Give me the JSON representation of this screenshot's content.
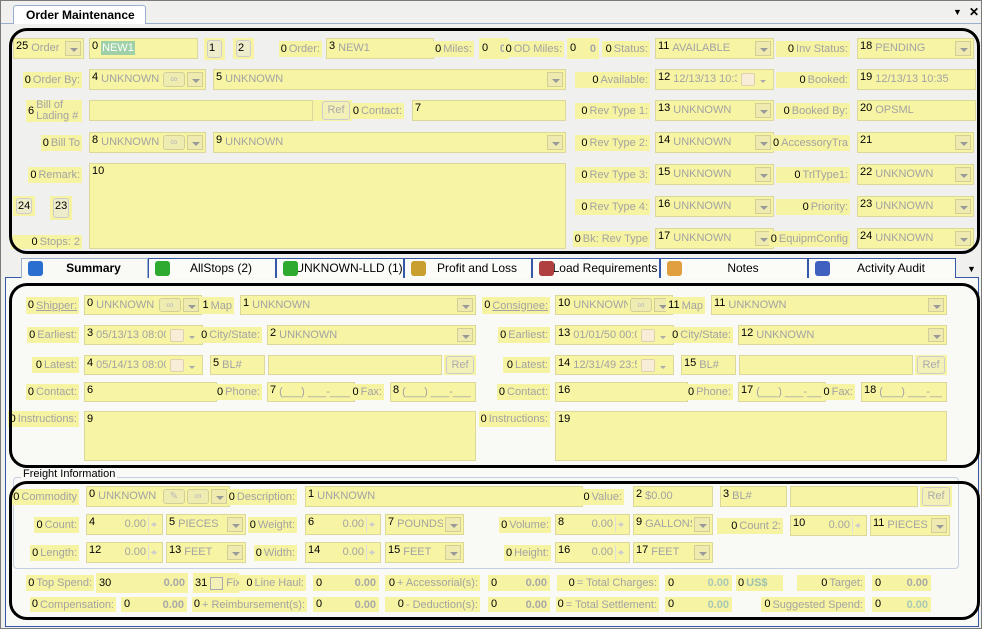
{
  "window": {
    "title": "Order Maintenance",
    "menu_icon": "dropdown-arrow",
    "close_icon": "x"
  },
  "order": {
    "type": {
      "value": "Order",
      "tag": "25"
    },
    "number": {
      "value": "NEW1",
      "tag": "0"
    },
    "copy_button": {
      "tag": "1",
      "icon": "copy-icon"
    },
    "edit_button": {
      "tag": "2",
      "icon": "edit-icon"
    },
    "order_label": {
      "label": "Order:",
      "tag": "0"
    },
    "order_value": {
      "value": "NEW1",
      "tag": "3"
    },
    "miles_label": {
      "label": "Miles:",
      "tag": "0"
    },
    "miles": {
      "value": "0",
      "tag": "0"
    },
    "od_miles_label": {
      "label": "OD Miles:",
      "tag": "0"
    },
    "od_miles": {
      "value": "0",
      "tag": "0"
    },
    "status_label": {
      "label": "Status:",
      "tag": "0"
    },
    "status": {
      "value": "AVAILABLE",
      "tag": "11"
    },
    "inv_status_label": {
      "label": "Inv Status:",
      "tag": "0"
    },
    "inv_status": {
      "value": "PENDING",
      "tag": "18"
    },
    "order_by_label": {
      "label": "Order By:",
      "tag": "0"
    },
    "order_by_code": {
      "value": "UNKNOWN",
      "tag": "4"
    },
    "order_by_name": {
      "value": "UNKNOWN",
      "tag": "5"
    },
    "available_label": {
      "label": "Available:",
      "tag": "0"
    },
    "available": {
      "value": "12/13/13 10:35",
      "tag": "12"
    },
    "booked_label": {
      "label": "Booked:",
      "tag": "0"
    },
    "booked": {
      "value": "12/13/13 10:35",
      "tag": "19"
    },
    "bol_label": {
      "label": "Bill of Lading #",
      "tag": "6"
    },
    "bol": {
      "value": "",
      "tag": ""
    },
    "bol_ref": {
      "label": "Ref"
    },
    "contact_label": {
      "label": "Contact:",
      "tag": "0"
    },
    "contact": {
      "value": "",
      "tag": "7"
    },
    "rev1_label": {
      "label": "Rev Type 1:",
      "tag": "0"
    },
    "rev1": {
      "value": "UNKNOWN",
      "tag": "13"
    },
    "booked_by_label": {
      "label": "Booked By:",
      "tag": "0"
    },
    "booked_by": {
      "value": "OPSML",
      "tag": "20"
    },
    "bill_to_label": {
      "label": "Bill To",
      "tag": "0"
    },
    "bill_to_code": {
      "value": "UNKNOWN",
      "tag": "8"
    },
    "bill_to_name": {
      "value": "UNKNOWN",
      "tag": "9"
    },
    "rev2_label": {
      "label": "Rev Type 2:",
      "tag": "0"
    },
    "rev2": {
      "value": "UNKNOWN",
      "tag": "14"
    },
    "accessory_label": {
      "label": "AccessoryTra",
      "tag": "0"
    },
    "accessory": {
      "value": "",
      "tag": "21"
    },
    "remark_label": {
      "label": "Remark:",
      "tag": "0"
    },
    "remark": {
      "value": "",
      "tag": "10"
    },
    "rev3_label": {
      "label": "Rev Type 3:",
      "tag": "0"
    },
    "rev3": {
      "value": "UNKNOWN",
      "tag": "15"
    },
    "trltype_label": {
      "label": "TrlType1:",
      "tag": "0"
    },
    "trltype": {
      "value": "UNKNOWN",
      "tag": "22"
    },
    "shield_button": {
      "tag": "24",
      "icon": "shield-icon"
    },
    "note_button": {
      "tag": "23",
      "icon": "note-icon"
    },
    "rev4_label": {
      "label": "Rev Type 4:",
      "tag": "0"
    },
    "rev4": {
      "value": "UNKNOWN",
      "tag": "16"
    },
    "priority_label": {
      "label": "Priority:",
      "tag": "0"
    },
    "priority": {
      "value": "UNKNOWN",
      "tag": "23"
    },
    "stops_label": {
      "label": "Stops: 2",
      "tag": "0"
    },
    "bk_rev_label": {
      "label": "Bk: Rev Type",
      "tag": "0"
    },
    "bk_rev": {
      "value": "UNKNOWN",
      "tag": "17"
    },
    "equip_label": {
      "label": "EquipmConfig",
      "tag": "0"
    },
    "equip": {
      "value": "UNKNOWN",
      "tag": "24"
    }
  },
  "tabs": [
    {
      "label": "Summary",
      "active": true,
      "icon": "book-icon",
      "color": "#2a6fd0"
    },
    {
      "label": "AllStops (2)",
      "icon": "cube-icon",
      "color": "#2eaa2e"
    },
    {
      "label": "UNKNOWN-LLD (1)",
      "icon": "cube-icon",
      "color": "#2eaa2e"
    },
    {
      "label": "Profit and Loss",
      "icon": "money-bag-icon",
      "color": "#c9a030"
    },
    {
      "label": "Load Requirements",
      "icon": "checklist-icon",
      "color": "#b04040"
    },
    {
      "label": "Notes",
      "icon": "pencil-icon",
      "color": "#e0a040"
    },
    {
      "label": "Activity Audit",
      "icon": "audit-icon",
      "color": "#4060c0"
    }
  ],
  "shipper": {
    "label": {
      "label": "Shipper:",
      "tag": "0"
    },
    "code": {
      "value": "UNKNOWN",
      "tag": "0"
    },
    "map_label": {
      "label": "Map",
      "tag": "1"
    },
    "map": {
      "value": "UNKNOWN",
      "tag": "1"
    },
    "earliest_label": {
      "label": "Earliest:",
      "tag": "0"
    },
    "earliest": {
      "value": "05/13/13 08:00",
      "tag": "3"
    },
    "city_label": {
      "label": "City/State:",
      "tag": "0"
    },
    "city": {
      "value": "UNKNOWN",
      "tag": "2"
    },
    "latest_label": {
      "label": "Latest:",
      "tag": "0"
    },
    "latest": {
      "value": "05/14/13 08:00",
      "tag": "4"
    },
    "bl_label": {
      "value": "BL#",
      "tag": "5"
    },
    "bl": {
      "value": "",
      "tag": ""
    },
    "bl_ref": {
      "label": "Ref"
    },
    "contact_label": {
      "label": "Contact:",
      "tag": "0"
    },
    "contact": {
      "value": "",
      "tag": "6"
    },
    "phone_label": {
      "label": "Phone:",
      "tag": "0"
    },
    "phone": {
      "value": "(___) ___-____",
      "tag": "7"
    },
    "fax_label": {
      "label": "Fax:",
      "tag": "0"
    },
    "fax": {
      "value": "(___) ___-____",
      "tag": "8"
    },
    "instructions_label": {
      "label": "Instructions:",
      "tag": "0"
    },
    "instructions": {
      "value": "",
      "tag": "9"
    }
  },
  "consignee": {
    "label": {
      "label": "Consignee:",
      "tag": "0"
    },
    "code": {
      "value": "UNKNOWN",
      "tag": "10"
    },
    "map_label": {
      "label": "Map",
      "tag": "11"
    },
    "map": {
      "value": "UNKNOWN",
      "tag": "11"
    },
    "earliest_label": {
      "label": "Earliest:",
      "tag": "0"
    },
    "earliest": {
      "value": "01/01/50 00:00",
      "tag": "13"
    },
    "city_label": {
      "label": "City/State:",
      "tag": "0"
    },
    "city": {
      "value": "UNKNOWN",
      "tag": "12"
    },
    "latest_label": {
      "label": "Latest:",
      "tag": "0"
    },
    "latest": {
      "value": "12/31/49 23:59",
      "tag": "14"
    },
    "bl_label": {
      "value": "BL#",
      "tag": "15"
    },
    "bl": {
      "value": "",
      "tag": ""
    },
    "bl_ref": {
      "label": "Ref"
    },
    "contact_label": {
      "label": "Contact:",
      "tag": "0"
    },
    "contact": {
      "value": "",
      "tag": "16"
    },
    "phone_label": {
      "label": "Phone:",
      "tag": "0"
    },
    "phone": {
      "value": "(___) ___-____",
      "tag": "17"
    },
    "fax_label": {
      "label": "Fax:",
      "tag": "0"
    },
    "fax": {
      "value": "(___) ___-____",
      "tag": "18"
    },
    "instructions_label": {
      "label": "Instructions:",
      "tag": "0"
    },
    "instructions": {
      "value": "",
      "tag": "19"
    }
  },
  "freight": {
    "title": "Freight Information",
    "commodity_label": {
      "label": "Commodity",
      "tag": "0"
    },
    "commodity": {
      "value": "UNKNOWN",
      "tag": "0"
    },
    "description_label": {
      "label": "Description:",
      "tag": "0"
    },
    "description": {
      "value": "UNKNOWN",
      "tag": "1"
    },
    "value_label": {
      "label": "Value:",
      "tag": "0"
    },
    "value": {
      "value": "$0.00",
      "tag": "2"
    },
    "bl_label": {
      "value": "BL#",
      "tag": "3"
    },
    "bl": {
      "value": "",
      "tag": ""
    },
    "bl_ref": {
      "label": "Ref"
    },
    "count_label": {
      "label": "Count:",
      "tag": "0"
    },
    "count": {
      "value": "0.00",
      "tag": "4"
    },
    "count_unit": {
      "value": "PIECES",
      "tag": "5"
    },
    "weight_label": {
      "label": "Weight:",
      "tag": "0"
    },
    "weight": {
      "value": "0.00",
      "tag": "6"
    },
    "weight_unit": {
      "value": "POUNDS",
      "tag": "7"
    },
    "volume_label": {
      "label": "Volume:",
      "tag": "0"
    },
    "volume": {
      "value": "0.00",
      "tag": "8"
    },
    "volume_unit": {
      "value": "GALLONS",
      "tag": "9"
    },
    "count2_label": {
      "label": "Count 2:",
      "tag": "0"
    },
    "count2": {
      "value": "0.00",
      "tag": "10"
    },
    "count2_unit": {
      "value": "PIECES",
      "tag": "11"
    },
    "length_label": {
      "label": "Length:",
      "tag": "0"
    },
    "length": {
      "value": "0.00",
      "tag": "12"
    },
    "length_unit": {
      "value": "FEET",
      "tag": "13"
    },
    "width_label": {
      "label": "Width:",
      "tag": "0"
    },
    "width": {
      "value": "0.00",
      "tag": "14"
    },
    "width_unit": {
      "value": "FEET",
      "tag": "15"
    },
    "height_label": {
      "label": "Height:",
      "tag": "0"
    },
    "height": {
      "value": "0.00",
      "tag": "16"
    },
    "height_unit": {
      "value": "FEET",
      "tag": "17"
    }
  },
  "totals": {
    "top_spend_label": {
      "label": "Top Spend:",
      "tag": "0"
    },
    "top_spend": {
      "value": "0.00",
      "tag": "30"
    },
    "fix": {
      "label": "Fix",
      "tag": "31",
      "checked": false
    },
    "line_haul_label": {
      "label": "Line Haul:",
      "tag": "0"
    },
    "line_haul": {
      "value": "0.00",
      "tag": "0"
    },
    "accessorial_label": {
      "label": "+ Accessorial(s):",
      "tag": "0"
    },
    "accessorial": {
      "value": "0.00",
      "tag": "0"
    },
    "total_charges_label": {
      "label": "= Total Charges:",
      "tag": "0"
    },
    "total_charges": {
      "value": "0.00",
      "tag": "0"
    },
    "currency": {
      "label": "US$",
      "tag": "0"
    },
    "target_label": {
      "label": "Target:",
      "tag": "0"
    },
    "target": {
      "value": "0.00",
      "tag": "0"
    },
    "compensation_label": {
      "label": "Compensation:",
      "tag": "0"
    },
    "compensation": {
      "value": "0.00",
      "tag": "0"
    },
    "reimbursement_label": {
      "label": "+ Reimbursement(s):",
      "tag": "0"
    },
    "reimbursement": {
      "value": "0.00",
      "tag": "0"
    },
    "deduction_label": {
      "label": "- Deduction(s):",
      "tag": "0"
    },
    "deduction": {
      "value": "0.00",
      "tag": "0"
    },
    "total_settlement_label": {
      "label": "= Total Settlement:",
      "tag": "0"
    },
    "total_settlement": {
      "value": "0.00",
      "tag": "0"
    },
    "suggested_label": {
      "label": "Suggested Spend:",
      "tag": "0"
    },
    "suggested": {
      "value": "0.00",
      "tag": "0"
    }
  }
}
